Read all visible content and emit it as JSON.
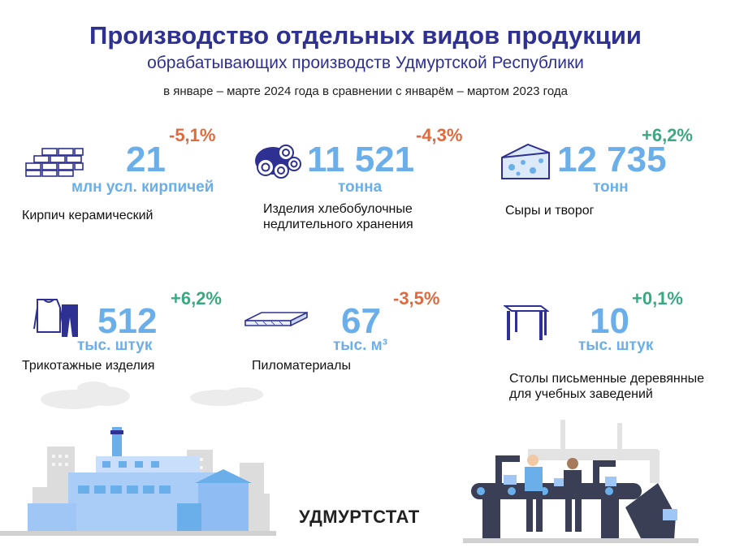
{
  "header": {
    "title": "Производство отдельных видов продукции",
    "subtitle": "обрабатывающих производств Удмуртской Республики",
    "period": "в январе – марте 2024 года в сравнении с январём – мартом 2023 года"
  },
  "items": [
    {
      "icon": "brick-wall-icon",
      "value": "21",
      "unit": "млн усл. кирпичей",
      "change": "-5,1%",
      "label": "Кирпич керамический"
    },
    {
      "icon": "bread-rings-icon",
      "value": "11 521",
      "unit": "тонна",
      "change": "-4,3%",
      "label": "Изделия хлебобулочные недлительного хранения"
    },
    {
      "icon": "cheese-icon",
      "value": "12 735",
      "unit": "тонн",
      "change": "+6,2%",
      "label": "Сыры и творог"
    },
    {
      "icon": "sweater-pants-icon",
      "value": "512",
      "unit": "тыс. штук",
      "change": "+6,2%",
      "label": "Трикотажные изделия"
    },
    {
      "icon": "lumber-board-icon",
      "value": "67",
      "unit": "тыс. м³",
      "change": "-3,5%",
      "label": "Пиломатериалы"
    },
    {
      "icon": "desk-icon",
      "value": "10",
      "unit": "тыс. штук",
      "change": "+0,1%",
      "label": "Столы письменные деревянные для учебных заведений"
    }
  ],
  "footer": {
    "brand": "УДМУРТСТАТ"
  },
  "colors": {
    "title": "#2e3192",
    "value": "#6aaeea",
    "negative": "#e06a3c",
    "positive": "#3aa981"
  }
}
